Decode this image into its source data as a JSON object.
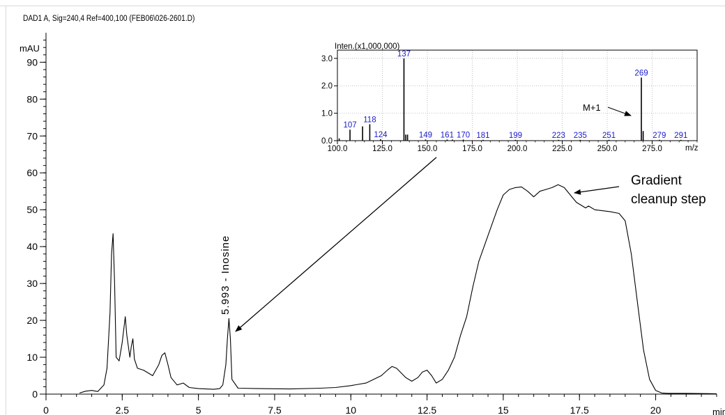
{
  "chart_data": [
    {
      "type": "line",
      "title": "DAD1 A, Sig=240,4 Ref=400,100 (FEB06\\026-2601.D)",
      "ylabel": "mAU",
      "xlabel": "min",
      "xlim": [
        0,
        22
      ],
      "ylim": [
        0,
        98
      ],
      "x_ticks": [
        0,
        2.5,
        5,
        7.5,
        10,
        12.5,
        15,
        17.5,
        20
      ],
      "x_tick_labels": [
        "0",
        "2.5",
        "5",
        "7.5",
        "10",
        "12.5",
        "15",
        "17.5",
        "20"
      ],
      "y_ticks": [
        0,
        10,
        20,
        30,
        40,
        50,
        60,
        70,
        80,
        90
      ],
      "y_tick_labels": [
        "0",
        "10",
        "20",
        "30",
        "40",
        "50",
        "60",
        "70",
        "80",
        "90"
      ],
      "series": [
        {
          "color": "#000000",
          "x": [
            1.1,
            1.3,
            1.5,
            1.7,
            1.9,
            2.0,
            2.1,
            2.15,
            2.2,
            2.25,
            2.3,
            2.4,
            2.5,
            2.6,
            2.65,
            2.75,
            2.8,
            2.85,
            2.9,
            3.0,
            3.2,
            3.5,
            3.7,
            3.8,
            3.9,
            4.0,
            4.1,
            4.3,
            4.5,
            4.7,
            5.0,
            5.5,
            5.7,
            5.8,
            5.9,
            5.95,
            6.0,
            6.05,
            6.1,
            6.3,
            7.0,
            8.0,
            9.0,
            9.5,
            10.0,
            10.5,
            11.0,
            11.2,
            11.35,
            11.5,
            11.8,
            12.0,
            12.2,
            12.35,
            12.5,
            12.65,
            12.8,
            13.0,
            13.2,
            13.4,
            13.6,
            13.8,
            14.0,
            14.2,
            14.5,
            14.8,
            15.0,
            15.2,
            15.4,
            15.6,
            15.8,
            16.0,
            16.2,
            16.4,
            16.6,
            16.8,
            17.0,
            17.2,
            17.4,
            17.6,
            17.7,
            17.8,
            18.0,
            18.2,
            18.5,
            18.8,
            19.0,
            19.2,
            19.4,
            19.6,
            19.8,
            20.0,
            20.2,
            20.4,
            21.0,
            22.0
          ],
          "y": [
            0.3,
            0.8,
            1.0,
            0.7,
            2.5,
            7.0,
            22.0,
            38.0,
            43.5,
            30.0,
            10.0,
            9.0,
            14.0,
            21.0,
            16.0,
            10.0,
            13.0,
            15.0,
            9.5,
            7.0,
            6.5,
            5.0,
            8.0,
            10.5,
            11.2,
            8.0,
            4.5,
            2.5,
            3.0,
            1.8,
            1.5,
            1.3,
            1.5,
            2.5,
            8.0,
            15.0,
            20.5,
            15.0,
            4.0,
            1.6,
            1.5,
            1.4,
            1.6,
            1.8,
            2.3,
            3.0,
            5.0,
            6.5,
            7.5,
            7.0,
            4.5,
            3.5,
            4.5,
            6.0,
            6.5,
            5.0,
            3.0,
            4.0,
            6.5,
            10.0,
            16.0,
            21.0,
            29.0,
            36.0,
            43.0,
            50.0,
            54.0,
            55.5,
            56.0,
            56.2,
            55.0,
            53.5,
            55.0,
            55.5,
            56.0,
            56.8,
            56.0,
            54.0,
            52.0,
            51.0,
            50.5,
            51.0,
            50.0,
            49.8,
            49.5,
            49.0,
            47.0,
            38.0,
            25.0,
            12.0,
            4.0,
            1.0,
            0.3,
            0.2,
            0.2,
            0.1
          ]
        }
      ],
      "annotations": [
        {
          "text": "5.993 - Inosine",
          "x": 5.993,
          "y": 20.5,
          "rotation": -90
        },
        {
          "text": "Gradient",
          "x": 19.8,
          "y": 59
        },
        {
          "text": "cleanup step",
          "x": 19.8,
          "y": 54
        },
        {
          "text": "",
          "type": "arrow",
          "from": [
            19.2,
            57.6
          ],
          "to": [
            17.75,
            56.0
          ]
        },
        {
          "text": "",
          "type": "arrow",
          "from": [
            13.3,
            67.8
          ],
          "to": [
            6.3,
            17.5
          ]
        }
      ]
    },
    {
      "type": "bar",
      "title": "Inten.(x1,000,000)",
      "xlabel": "m/z",
      "xlim": [
        100,
        300
      ],
      "ylim": [
        0,
        3.3
      ],
      "x_ticks": [
        100,
        125,
        150,
        175,
        200,
        225,
        250,
        275
      ],
      "x_tick_labels": [
        "100.0",
        "125.0",
        "150.0",
        "175.0",
        "200.0",
        "225.0",
        "250.0",
        "275.0"
      ],
      "y_ticks": [
        0,
        1,
        2,
        3
      ],
      "y_tick_labels": [
        "0.0",
        "1.0",
        "2.0",
        "3.0"
      ],
      "grid": true,
      "peaks": {
        "x": [
          101,
          107,
          114,
          118,
          124,
          137,
          138,
          139,
          149,
          161,
          164,
          170,
          181,
          199,
          223,
          235,
          251,
          269,
          270,
          279,
          291
        ],
        "y": [
          0.08,
          0.4,
          0.52,
          0.6,
          0.05,
          3.0,
          0.22,
          0.22,
          0.04,
          0.04,
          0.04,
          0.04,
          0.03,
          0.03,
          0.03,
          0.03,
          0.03,
          2.3,
          0.35,
          0.03,
          0.03
        ]
      },
      "peak_labels": [
        {
          "text": "107",
          "x": 107,
          "y": 0.4
        },
        {
          "text": "118",
          "x": 118,
          "y": 0.6
        },
        {
          "text": "124",
          "x": 124,
          "y": 0.05
        },
        {
          "text": "137",
          "x": 137,
          "y": 3.0
        },
        {
          "text": "149",
          "x": 149,
          "y": 0.04
        },
        {
          "text": "161",
          "x": 161,
          "y": 0.04
        },
        {
          "text": "170",
          "x": 170,
          "y": 0.04
        },
        {
          "text": "181",
          "x": 181,
          "y": 0.03
        },
        {
          "text": "199",
          "x": 199,
          "y": 0.03
        },
        {
          "text": "223",
          "x": 223,
          "y": 0.03
        },
        {
          "text": "235",
          "x": 235,
          "y": 0.03
        },
        {
          "text": "251",
          "x": 251,
          "y": 0.03
        },
        {
          "text": "269",
          "x": 269,
          "y": 2.3
        },
        {
          "text": "279",
          "x": 279,
          "y": 0.03
        },
        {
          "text": "291",
          "x": 291,
          "y": 0.03
        }
      ],
      "annotations": [
        {
          "text": "M+1",
          "x": 248,
          "y": 1.65
        },
        {
          "text": "",
          "type": "arrow",
          "from": [
            256,
            1.6
          ],
          "to": [
            266,
            1.3
          ]
        }
      ]
    }
  ]
}
